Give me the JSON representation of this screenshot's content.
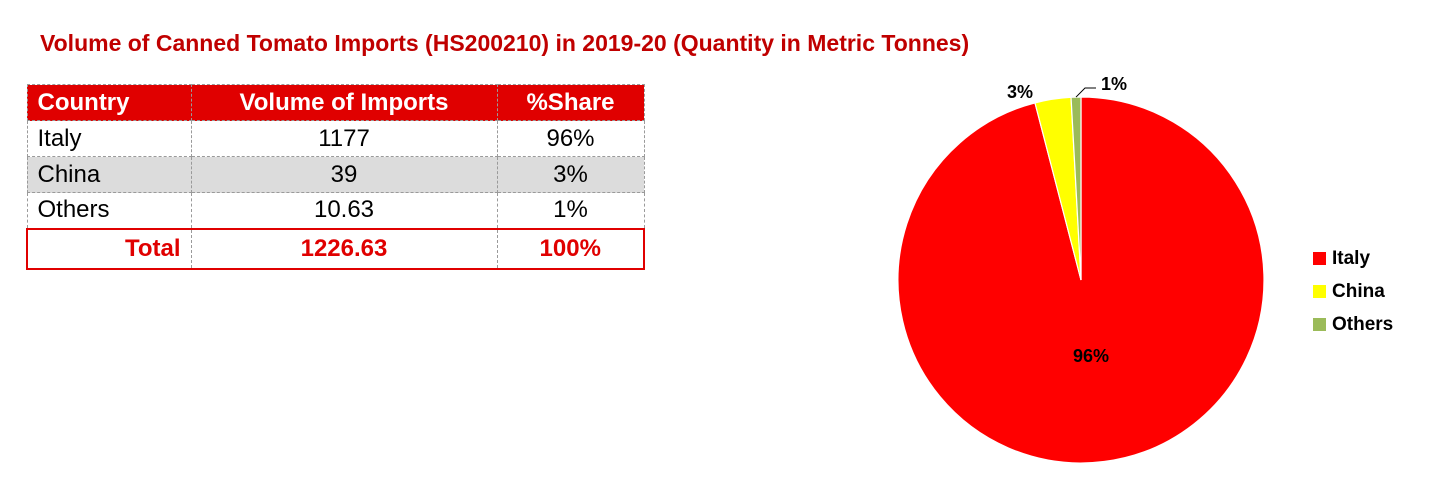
{
  "title": "Volume of Canned Tomato Imports (HS200210) in 2019-20 (Quantity in Metric Tonnes)",
  "table": {
    "headers": [
      "Country",
      "Volume of Imports",
      "%Share"
    ],
    "rows": [
      {
        "country": "Italy",
        "volume": "1177",
        "share": "96%"
      },
      {
        "country": "China",
        "volume": "39",
        "share": "3%"
      },
      {
        "country": "Others",
        "volume": "10.63",
        "share": "1%"
      }
    ],
    "total": {
      "label": "Total",
      "volume": "1226.63",
      "share": "100%"
    }
  },
  "chart_data": {
    "type": "pie",
    "categories": [
      "Italy",
      "China",
      "Others"
    ],
    "values": [
      1177,
      39,
      10.63
    ],
    "data_labels": [
      "96%",
      "3%",
      "1%"
    ],
    "colors": [
      "#ff0000",
      "#ffff00",
      "#9bbb59"
    ],
    "legend": "right"
  }
}
